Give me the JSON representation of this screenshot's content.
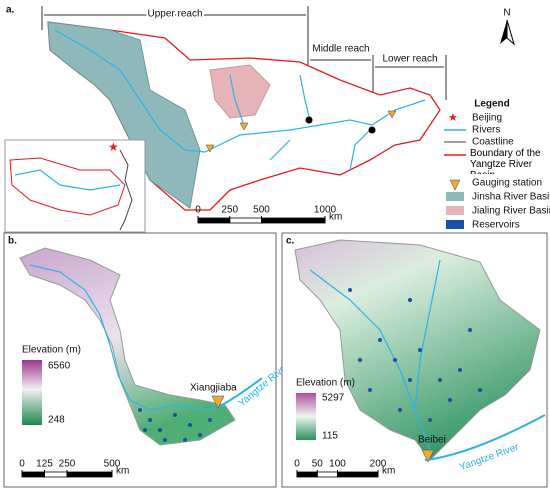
{
  "panel_a": {
    "label": "a.",
    "reaches": [
      "Upper reach",
      "Middle reach",
      "Lower reach"
    ],
    "north": "N",
    "scale": {
      "ticks": [
        0,
        250,
        500,
        1000
      ],
      "unit": "km"
    },
    "legend": {
      "title": "Legend",
      "items": [
        "Beijing",
        "Rivers",
        "Coastline",
        "Boundary of the Yangtze River Basin",
        "Gauging station",
        "Jinsha River Basin",
        "Jialing River Basin",
        "Reservoirs"
      ]
    }
  },
  "panel_b": {
    "label": "b.",
    "elevation": {
      "title": "Elevation (m)",
      "max": 6560,
      "min": 248
    },
    "station": "Xiangjiaba",
    "river": "Yangtze River",
    "scale": {
      "ticks": [
        0,
        125,
        250,
        500
      ],
      "unit": "km"
    }
  },
  "panel_c": {
    "label": "c.",
    "elevation": {
      "title": "Elevation (m)",
      "max": 5297,
      "min": 115
    },
    "station": "Beibei",
    "river": "Yangtze River",
    "scale": {
      "ticks": [
        0,
        50,
        100,
        200
      ],
      "unit": "km"
    }
  }
}
